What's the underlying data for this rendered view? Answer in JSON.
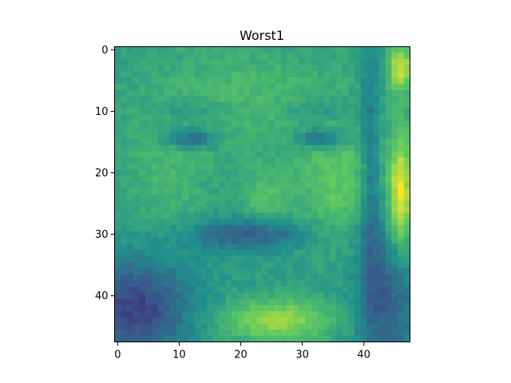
{
  "title": "Worst1",
  "image": {
    "kind": "grayscale-face-heatmap",
    "grid_cols": 48,
    "grid_rows": 48,
    "colormap": "viridis",
    "colormap_stops": [
      "#440154",
      "#3b528b",
      "#21918c",
      "#5ec962",
      "#fde725"
    ],
    "subject": "close-up of a child's face with a toy in mouth"
  },
  "axes": {
    "x_ticks": [
      0,
      10,
      20,
      30,
      40
    ],
    "y_ticks": [
      0,
      10,
      20,
      30,
      40
    ],
    "x_tick_labels": [
      "0",
      "10",
      "20",
      "30",
      "40"
    ],
    "y_tick_labels": [
      "0",
      "10",
      "20",
      "30",
      "40"
    ]
  }
}
